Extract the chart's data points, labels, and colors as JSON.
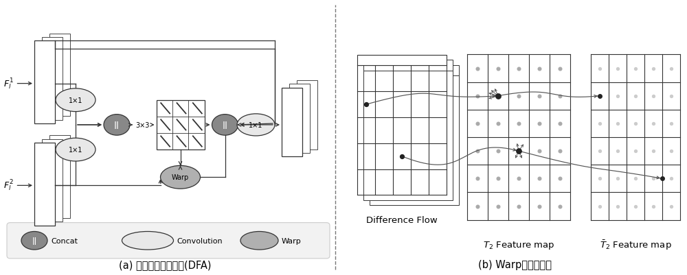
{
  "bg_color": "#ffffff",
  "left_panel_title": "(a) 差异特征对齐模块(DFA)",
  "right_panel_title": "(b) Warp重采样过程",
  "diff_flow_label": "Difference Flow",
  "t2_label": "$T_2$ Feature map",
  "t2bar_label": "$\\bar{T}_2$ Feature map",
  "concat_color": "#888888",
  "conv_color": "#e8e8e8",
  "warp_color": "#b0b0b0",
  "line_color": "#333333",
  "dot_color": "#999999",
  "dark_dot_color": "#222222"
}
